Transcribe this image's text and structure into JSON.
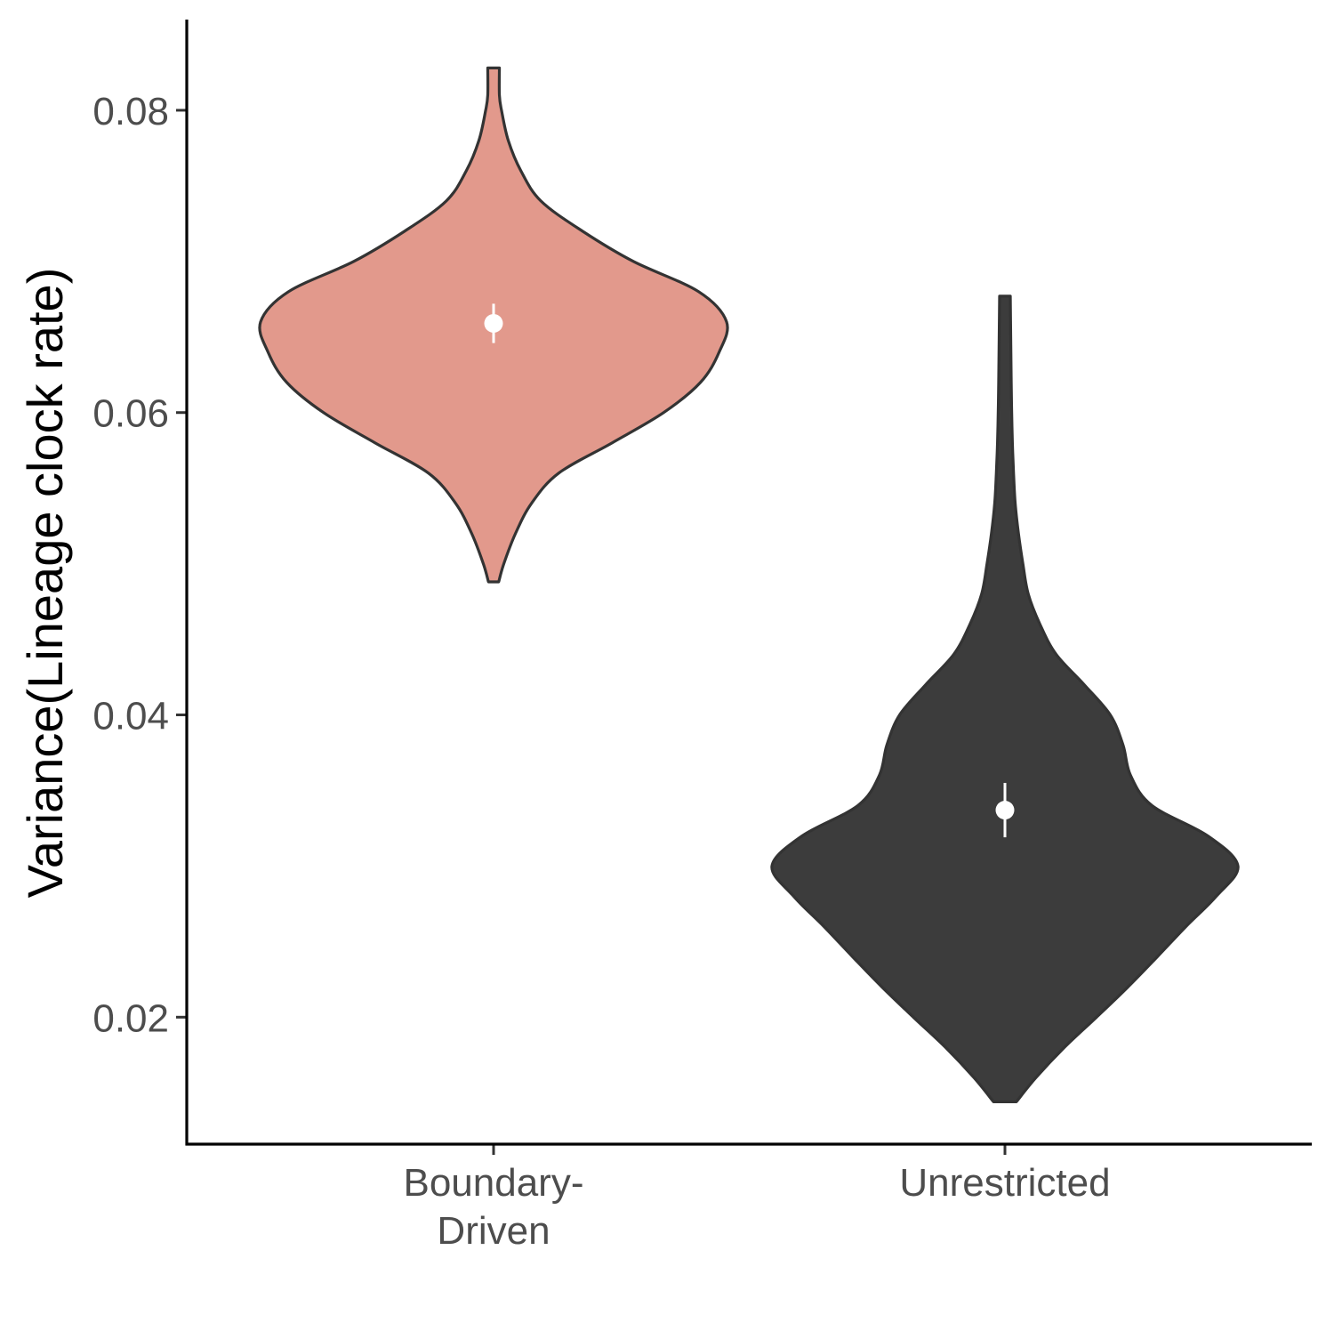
{
  "chart_data": {
    "type": "violin",
    "title": "",
    "xlabel": "",
    "ylabel": "Variance(Lineage clock rate)",
    "ylim": [
      0.0116,
      0.086
    ],
    "yticks": [
      0.02,
      0.04,
      0.06,
      0.08
    ],
    "ytick_labels": [
      "0.02",
      "0.04",
      "0.06",
      "0.08"
    ],
    "grid": false,
    "legend": "none",
    "categories": [
      {
        "label_lines": [
          "Boundary-",
          "Driven"
        ],
        "fill": "#e2998c",
        "outline": "#333333",
        "min": 0.0488,
        "max": 0.0828,
        "mean": 0.0659,
        "ci": [
          0.0646,
          0.0672
        ],
        "density": [
          [
            0.0488,
            0.022
          ],
          [
            0.05,
            0.044
          ],
          [
            0.052,
            0.094
          ],
          [
            0.054,
            0.163
          ],
          [
            0.056,
            0.28
          ],
          [
            0.058,
            0.509
          ],
          [
            0.06,
            0.73
          ],
          [
            0.062,
            0.888
          ],
          [
            0.064,
            0.968
          ],
          [
            0.066,
            1.0
          ],
          [
            0.068,
            0.88
          ],
          [
            0.07,
            0.6
          ],
          [
            0.072,
            0.382
          ],
          [
            0.074,
            0.203
          ],
          [
            0.076,
            0.117
          ],
          [
            0.078,
            0.063
          ],
          [
            0.08,
            0.034
          ],
          [
            0.081,
            0.025
          ],
          [
            0.0828,
            0.025
          ]
        ]
      },
      {
        "label_lines": [
          "Unrestricted"
        ],
        "fill": "#3c3c3c",
        "outline": "#333333",
        "min": 0.0144,
        "max": 0.0677,
        "mean": 0.0337,
        "ci": [
          0.0319,
          0.0355
        ],
        "density": [
          [
            0.0144,
            0.049
          ],
          [
            0.016,
            0.133
          ],
          [
            0.018,
            0.255
          ],
          [
            0.02,
            0.393
          ],
          [
            0.022,
            0.528
          ],
          [
            0.024,
            0.654
          ],
          [
            0.026,
            0.777
          ],
          [
            0.028,
            0.907
          ],
          [
            0.03,
            1.0
          ],
          [
            0.032,
            0.87
          ],
          [
            0.034,
            0.631
          ],
          [
            0.036,
            0.539
          ],
          [
            0.038,
            0.507
          ],
          [
            0.04,
            0.452
          ],
          [
            0.042,
            0.34
          ],
          [
            0.044,
            0.22
          ],
          [
            0.046,
            0.15
          ],
          [
            0.048,
            0.1
          ],
          [
            0.05,
            0.077
          ],
          [
            0.052,
            0.058
          ],
          [
            0.054,
            0.044
          ],
          [
            0.056,
            0.037
          ],
          [
            0.058,
            0.032
          ],
          [
            0.06,
            0.029
          ],
          [
            0.062,
            0.027
          ],
          [
            0.0677,
            0.023
          ]
        ]
      }
    ]
  }
}
